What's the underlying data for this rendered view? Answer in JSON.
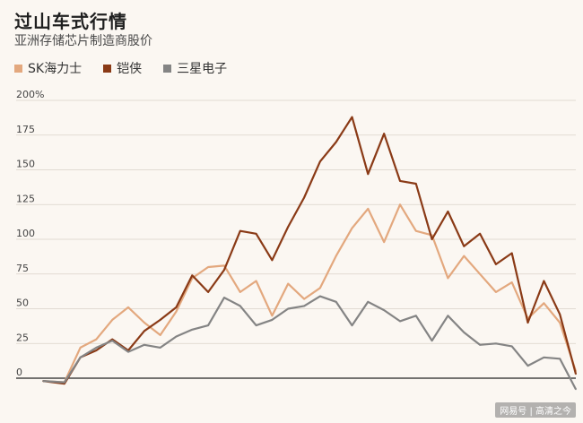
{
  "chart_data": {
    "type": "line",
    "title": "过山车式行情",
    "subtitle": "亚洲存储芯片制造商股价",
    "yticks": [
      "200%",
      "175",
      "150",
      "125",
      "100",
      "75",
      "50",
      "25",
      "0"
    ],
    "ytick_values": [
      200,
      175,
      150,
      125,
      100,
      75,
      50,
      25,
      0
    ],
    "ylim": [
      -10,
      200
    ],
    "xlim": [
      0,
      100
    ],
    "legend_position": "top-left",
    "grid": true,
    "series": [
      {
        "name": "SK海力士",
        "color": "#e3a87e",
        "x": [
          0,
          4,
          7,
          10,
          13,
          16,
          19,
          22,
          25,
          28,
          31,
          34,
          37,
          40,
          43,
          46,
          49,
          52,
          55,
          58,
          61,
          64,
          67,
          70,
          73,
          76,
          79,
          82,
          85,
          88,
          91,
          94,
          97,
          100
        ],
        "values": [
          -2,
          -3,
          22,
          28,
          42,
          51,
          40,
          31,
          48,
          72,
          80,
          81,
          62,
          70,
          45,
          68,
          57,
          65,
          88,
          108,
          122,
          98,
          125,
          106,
          103,
          72,
          88,
          75,
          62,
          69,
          43,
          54,
          40,
          5
        ]
      },
      {
        "name": "铠侠",
        "color": "#8a3a16",
        "x": [
          0,
          4,
          7,
          10,
          13,
          16,
          19,
          22,
          25,
          28,
          31,
          34,
          37,
          40,
          43,
          46,
          49,
          52,
          55,
          58,
          61,
          64,
          67,
          70,
          73,
          76,
          79,
          82,
          85,
          88,
          91,
          94,
          97,
          100
        ],
        "values": [
          -2,
          -4,
          15,
          20,
          28,
          20,
          34,
          42,
          51,
          74,
          62,
          78,
          106,
          104,
          85,
          109,
          130,
          156,
          170,
          188,
          147,
          176,
          142,
          140,
          100,
          120,
          95,
          104,
          82,
          90,
          40,
          70,
          46,
          3
        ]
      },
      {
        "name": "三星电子",
        "color": "#848484",
        "x": [
          0,
          4,
          7,
          10,
          13,
          16,
          19,
          22,
          25,
          28,
          31,
          34,
          37,
          40,
          43,
          46,
          49,
          52,
          55,
          58,
          61,
          64,
          67,
          70,
          73,
          76,
          79,
          82,
          85,
          88,
          91,
          94,
          97,
          100
        ],
        "values": [
          -2,
          -3,
          15,
          22,
          27,
          19,
          24,
          22,
          30,
          35,
          38,
          58,
          52,
          38,
          42,
          50,
          52,
          59,
          55,
          38,
          55,
          49,
          41,
          45,
          27,
          45,
          33,
          24,
          25,
          23,
          9,
          15,
          14,
          -8
        ]
      }
    ]
  },
  "watermark": "网易号 | 高清之今"
}
